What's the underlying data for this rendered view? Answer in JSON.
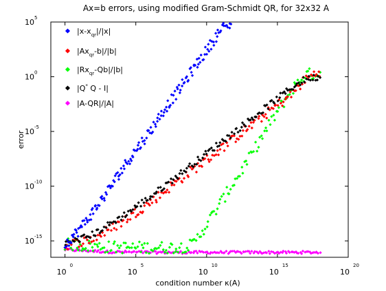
{
  "chart_data": {
    "type": "scatter",
    "title": "Ax=b errors, using modified Gram-Schmidt QR, for 32x32 A",
    "xlabel": "condition number κ(A)",
    "ylabel": "error",
    "x_scale": "log",
    "y_scale": "log",
    "xlim_exponent": [
      -1,
      20
    ],
    "ylim_exponent": [
      -16.5,
      5
    ],
    "x_tick_base": "10",
    "x_tick_exponents": [
      "0",
      "5",
      "10",
      "15",
      "20"
    ],
    "y_tick_base": "10",
    "y_tick_exponents": [
      "5",
      "0",
      "-5",
      "-10",
      "-15"
    ],
    "legend_position": "top-left",
    "series": [
      {
        "name": "|x-x_qr|/|x|",
        "legend_parts": [
          "|x-x",
          "qr",
          "|/|x|"
        ],
        "color": "#0000ff",
        "points": [
          [
            0,
            -15.3
          ],
          [
            1,
            -14
          ],
          [
            2,
            -12.3
          ],
          [
            3,
            -10.5
          ],
          [
            4,
            -8.5
          ],
          [
            5,
            -6.7
          ],
          [
            6,
            -5
          ],
          [
            7,
            -3
          ],
          [
            8,
            -1.3
          ],
          [
            9,
            0.6
          ],
          [
            10,
            2.4
          ],
          [
            11,
            4.3
          ],
          [
            11.8,
            5
          ]
        ]
      },
      {
        "name": "|Ax_qr-b|/|b|",
        "legend_parts": [
          "|Ax",
          "qr",
          "-b|/|b|"
        ],
        "color": "#ff0000",
        "points": [
          [
            0,
            -15.4
          ],
          [
            2,
            -14.8
          ],
          [
            4,
            -13.3
          ],
          [
            6,
            -11.5
          ],
          [
            8,
            -9.5
          ],
          [
            10,
            -7.6
          ],
          [
            12,
            -5.6
          ],
          [
            14,
            -3.6
          ],
          [
            16,
            -1.6
          ],
          [
            17,
            -0.2
          ],
          [
            18,
            0.5
          ]
        ]
      },
      {
        "name": "|Rx_qr-Qb|/|b|",
        "legend_parts": [
          "|Rx",
          "qr",
          "-Qb|/|b|"
        ],
        "color": "#00ff00",
        "points": [
          [
            0,
            -15.3
          ],
          [
            2,
            -15.5
          ],
          [
            4,
            -15.6
          ],
          [
            6,
            -15.6
          ],
          [
            8,
            -15.6
          ],
          [
            9,
            -15.4
          ],
          [
            10,
            -13.5
          ],
          [
            11,
            -11.5
          ],
          [
            12,
            -9.5
          ],
          [
            13,
            -7.5
          ],
          [
            14,
            -5.3
          ],
          [
            15,
            -3.2
          ],
          [
            16,
            -1.2
          ],
          [
            17,
            0.2
          ],
          [
            18,
            0.3
          ]
        ]
      },
      {
        "name": "|Q*Q - I|",
        "legend_parts": [
          "|Q",
          "*",
          " Q - I|"
        ],
        "color": "#000000",
        "points": [
          [
            0,
            -15.3
          ],
          [
            2,
            -14.4
          ],
          [
            4,
            -12.8
          ],
          [
            6,
            -11
          ],
          [
            8,
            -9
          ],
          [
            10,
            -7
          ],
          [
            12,
            -5
          ],
          [
            14,
            -3
          ],
          [
            16,
            -1
          ],
          [
            17,
            -0.2
          ],
          [
            18,
            0
          ]
        ]
      },
      {
        "name": "|A-QR|/|A|",
        "legend_parts": [
          "|A-QR|/|A|"
        ],
        "color": "#ff00ff",
        "points": [
          [
            0,
            -15.8
          ],
          [
            3,
            -16
          ],
          [
            6,
            -16.05
          ],
          [
            9,
            -16.05
          ],
          [
            12,
            -16.05
          ],
          [
            15,
            -16.05
          ],
          [
            18,
            -16.05
          ]
        ]
      }
    ]
  }
}
